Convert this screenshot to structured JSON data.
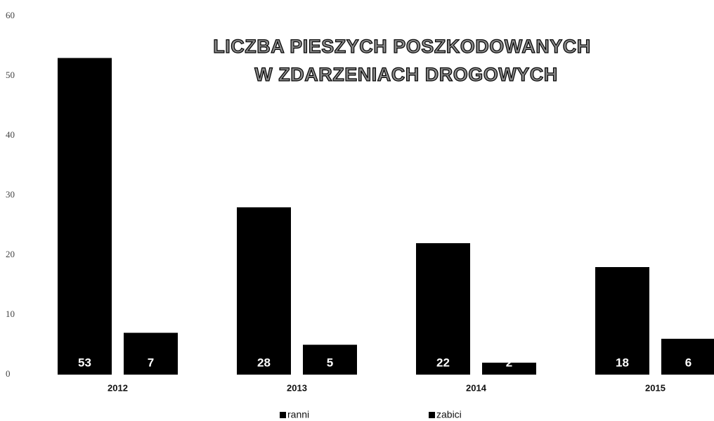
{
  "chart_data": {
    "type": "bar",
    "title": [
      "LICZBA PIESZYCH  POSZKODOWANYCH",
      "W  ZDARZENIACH  DROGOWYCH"
    ],
    "categories": [
      "2012",
      "2013",
      "2014",
      "2015"
    ],
    "series": [
      {
        "name": "ranni",
        "color": "#000000",
        "values": [
          53,
          28,
          22,
          18
        ]
      },
      {
        "name": "zabici",
        "color": "#000000",
        "values": [
          7,
          5,
          2,
          6
        ]
      }
    ],
    "ylim": [
      0,
      60
    ],
    "yticks": [
      0,
      10,
      20,
      30,
      40,
      50,
      60
    ],
    "grid": false,
    "legend": "bottom"
  }
}
